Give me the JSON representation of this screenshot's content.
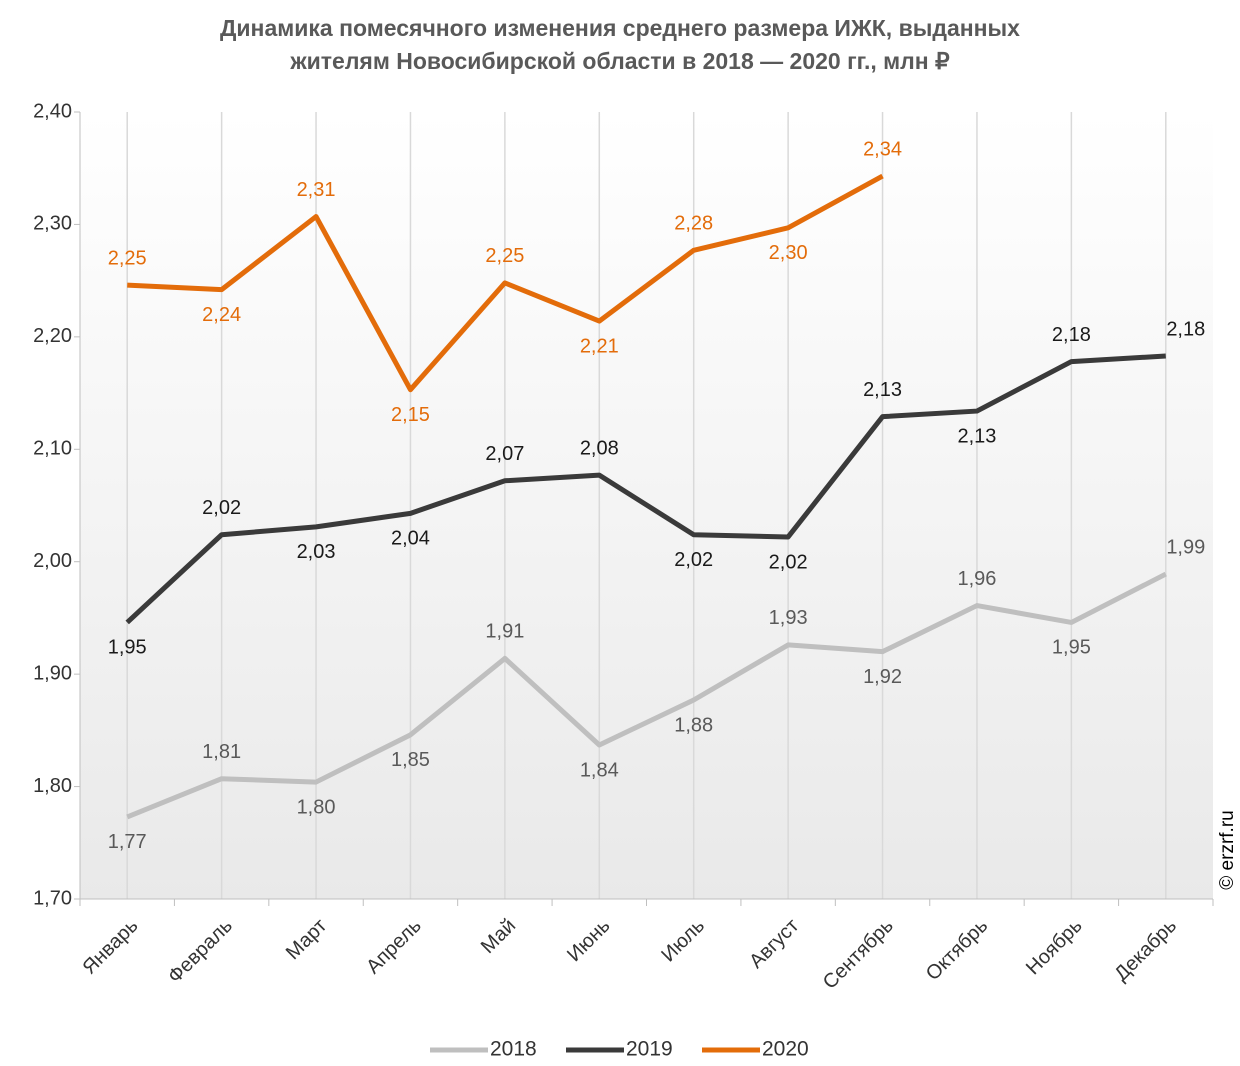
{
  "chart_data": {
    "type": "line",
    "title": "Динамика помесячного изменения среднего размера ИЖК, выданных",
    "subtitle": "жителям Новосибирской  области в 2018 — 2020 гг., млн ₽",
    "source": "© erzrf.ru",
    "categories": [
      "Январь",
      "Февраль",
      "Март",
      "Апрель",
      "Май",
      "Июнь",
      "Июль",
      "Август",
      "Сентябрь",
      "Октябрь",
      "Ноябрь",
      "Декабрь"
    ],
    "series": [
      {
        "name": "2018",
        "color": "#bfbfbf",
        "label_color": "#595959",
        "values": [
          1.773,
          1.807,
          1.804,
          1.846,
          1.914,
          1.837,
          1.877,
          1.926,
          1.92,
          1.961,
          1.946,
          1.989
        ],
        "value_labels": [
          "1,77",
          "1,81",
          "1,80",
          "1,85",
          "1,91",
          "1,84",
          "1,88",
          "1,93",
          "1,92",
          "1,96",
          "1,95",
          "1,99"
        ]
      },
      {
        "name": "2019",
        "color": "#3a3a3a",
        "label_color": "#1a1a1a",
        "values": [
          1.946,
          2.024,
          2.031,
          2.043,
          2.072,
          2.077,
          2.024,
          2.022,
          2.129,
          2.134,
          2.178,
          2.183
        ],
        "value_labels": [
          "1,95",
          "2,02",
          "2,03",
          "2,04",
          "2,07",
          "2,08",
          "2,02",
          "2,02",
          "2,13",
          "2,13",
          "2,18",
          "2,18"
        ]
      },
      {
        "name": "2020",
        "color": "#e36c0a",
        "label_color": "#e36c0a",
        "values": [
          2.246,
          2.242,
          2.307,
          2.153,
          2.248,
          2.214,
          2.277,
          2.297,
          2.343,
          null,
          null,
          null
        ],
        "value_labels": [
          "2,25",
          "2,24",
          "2,31",
          "2,15",
          "2,25",
          "2,21",
          "2,28",
          "2,30",
          "2,34",
          null,
          null,
          null
        ]
      }
    ],
    "ylim": [
      1.7,
      2.4
    ],
    "yticks": [
      {
        "value": 1.7,
        "label": "1,70"
      },
      {
        "value": 1.8,
        "label": "1,80"
      },
      {
        "value": 1.9,
        "label": "1,90"
      },
      {
        "value": 2.0,
        "label": "2,00"
      },
      {
        "value": 2.1,
        "label": "2,10"
      },
      {
        "value": 2.2,
        "label": "2,20"
      },
      {
        "value": 2.3,
        "label": "2,30"
      },
      {
        "value": 2.4,
        "label": "2,40"
      }
    ],
    "grid": true,
    "legend": "bottom"
  }
}
